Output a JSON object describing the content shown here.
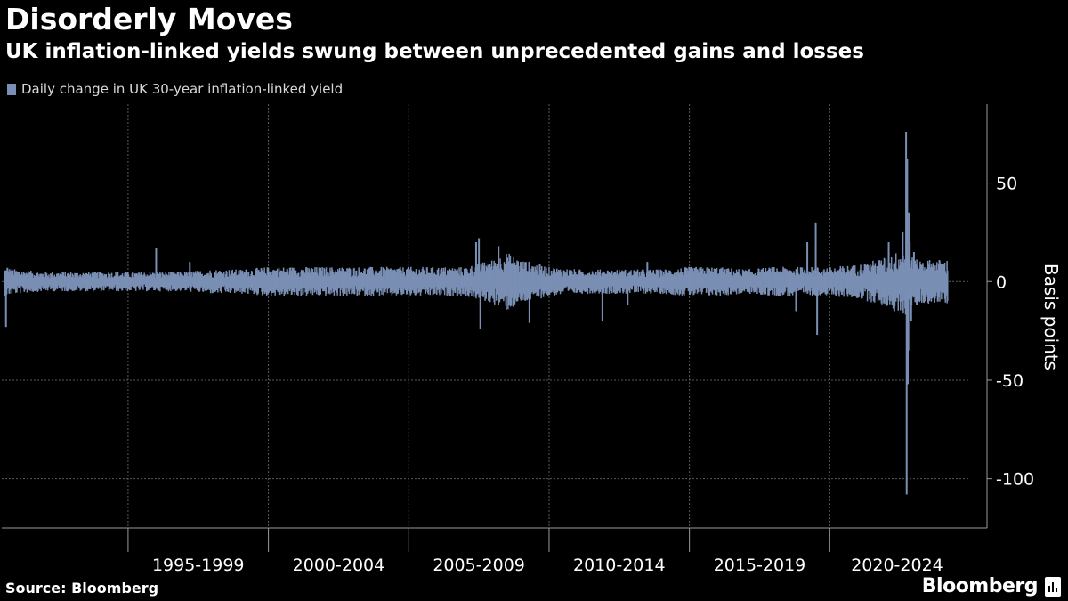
{
  "header": {
    "title": "Disorderly Moves",
    "subtitle": "UK inflation-linked yields swung between unprecedented gains and losses"
  },
  "footer": {
    "source": "Source: Bloomberg",
    "brand": "Bloomberg"
  },
  "chart_data": {
    "type": "bar",
    "title": "Disorderly Moves",
    "subtitle": "UK inflation-linked yields swung between unprecedented gains and losses",
    "ylabel": "Basis points",
    "xlabel": "",
    "ylim": [
      -125,
      90
    ],
    "yticks": [
      50,
      0,
      -50,
      -100
    ],
    "ytick_labels": [
      "50",
      "0",
      "-50",
      "-100"
    ],
    "xlim": [
      1990.5,
      2025.0
    ],
    "x_period_boundaries": [
      1995,
      2000,
      2005,
      2010,
      2015,
      2020
    ],
    "x_tick_labels": [
      "1995-1999",
      "2000-2004",
      "2005-2009",
      "2010-2014",
      "2015-2019",
      "2020-2024"
    ],
    "x_tick_label_positions": [
      1997.5,
      2002.5,
      2007.5,
      2012.5,
      2017.5,
      2022.4
    ],
    "grid": true,
    "legend_placement": "top-left",
    "series": [
      {
        "name": "Daily change in UK 30-year inflation-linked yield",
        "color": "#7a8fb4",
        "envelope": [
          [
            1990.6,
            6
          ],
          [
            1991.0,
            5
          ],
          [
            1992.0,
            4
          ],
          [
            1993.0,
            4
          ],
          [
            1994.0,
            4
          ],
          [
            1995.0,
            4
          ],
          [
            1996.0,
            4
          ],
          [
            1997.0,
            4
          ],
          [
            1998.0,
            5
          ],
          [
            1999.0,
            5
          ],
          [
            2000.0,
            6
          ],
          [
            2001.0,
            6
          ],
          [
            2002.0,
            6
          ],
          [
            2003.0,
            6
          ],
          [
            2004.0,
            6
          ],
          [
            2005.0,
            6
          ],
          [
            2006.0,
            6
          ],
          [
            2007.0,
            6
          ],
          [
            2008.0,
            9
          ],
          [
            2008.5,
            12
          ],
          [
            2009.0,
            9
          ],
          [
            2010.0,
            6
          ],
          [
            2011.0,
            5
          ],
          [
            2012.0,
            5
          ],
          [
            2013.0,
            5
          ],
          [
            2014.0,
            5
          ],
          [
            2015.0,
            6
          ],
          [
            2016.0,
            6
          ],
          [
            2017.0,
            5
          ],
          [
            2018.0,
            6
          ],
          [
            2019.0,
            6
          ],
          [
            2020.0,
            6
          ],
          [
            2021.0,
            7
          ],
          [
            2022.0,
            10
          ],
          [
            2022.75,
            14
          ],
          [
            2023.0,
            9
          ],
          [
            2024.0,
            9
          ],
          [
            2024.2,
            9
          ]
        ],
        "spikes": [
          [
            1990.65,
            -23
          ],
          [
            1990.7,
            7
          ],
          [
            1996.0,
            17
          ],
          [
            1997.2,
            10
          ],
          [
            2007.4,
            20
          ],
          [
            2007.5,
            22
          ],
          [
            2007.55,
            -24
          ],
          [
            2008.2,
            18
          ],
          [
            2009.3,
            -21
          ],
          [
            2011.9,
            -20
          ],
          [
            2012.8,
            -12
          ],
          [
            2013.5,
            10
          ],
          [
            2018.8,
            -15
          ],
          [
            2019.2,
            20
          ],
          [
            2019.5,
            30
          ],
          [
            2019.55,
            -27
          ],
          [
            2022.1,
            20
          ],
          [
            2022.3,
            -15
          ],
          [
            2022.6,
            25
          ],
          [
            2022.72,
            76
          ],
          [
            2022.74,
            -108
          ],
          [
            2022.76,
            62
          ],
          [
            2022.78,
            -52
          ],
          [
            2022.8,
            -35
          ],
          [
            2022.82,
            35
          ],
          [
            2022.85,
            20
          ],
          [
            2022.9,
            -20
          ],
          [
            2023.0,
            15
          ],
          [
            2023.1,
            -12
          ]
        ]
      }
    ]
  }
}
